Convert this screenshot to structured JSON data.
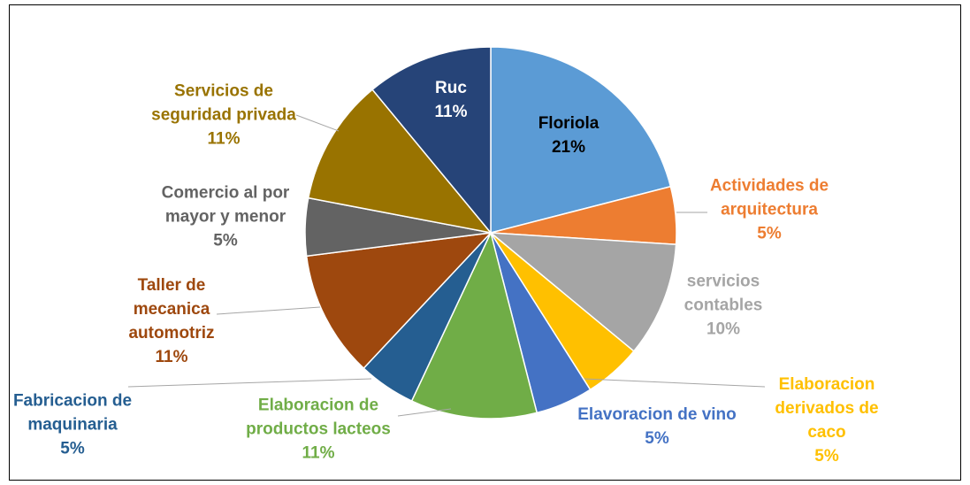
{
  "chart_data": {
    "type": "pie",
    "categories": [
      "Floriola",
      "Actividades de arquitectura",
      "servicios contables",
      "Elaboracion derivados de caco",
      "Elavoracion de vino",
      "Elaboracion de productos lacteos",
      "Fabricacion de maquinaria",
      "Taller de mecanica automotriz",
      "Comercio al por mayor y menor",
      "Servicios de seguridad privada",
      "Ruc"
    ],
    "values": [
      21,
      5,
      10,
      5,
      5,
      11,
      5,
      11,
      5,
      11,
      11
    ],
    "value_labels": [
      "21%",
      "5%",
      "10%",
      "5%",
      "5%",
      "11%",
      "5%",
      "11%",
      "5%",
      "11%",
      "11%"
    ],
    "colors": [
      "#5b9bd5",
      "#ed7d31",
      "#a5a5a5",
      "#ffc000",
      "#4472c4",
      "#70ad47",
      "#255e91",
      "#9e480e",
      "#636363",
      "#997300",
      "#264478"
    ]
  }
}
